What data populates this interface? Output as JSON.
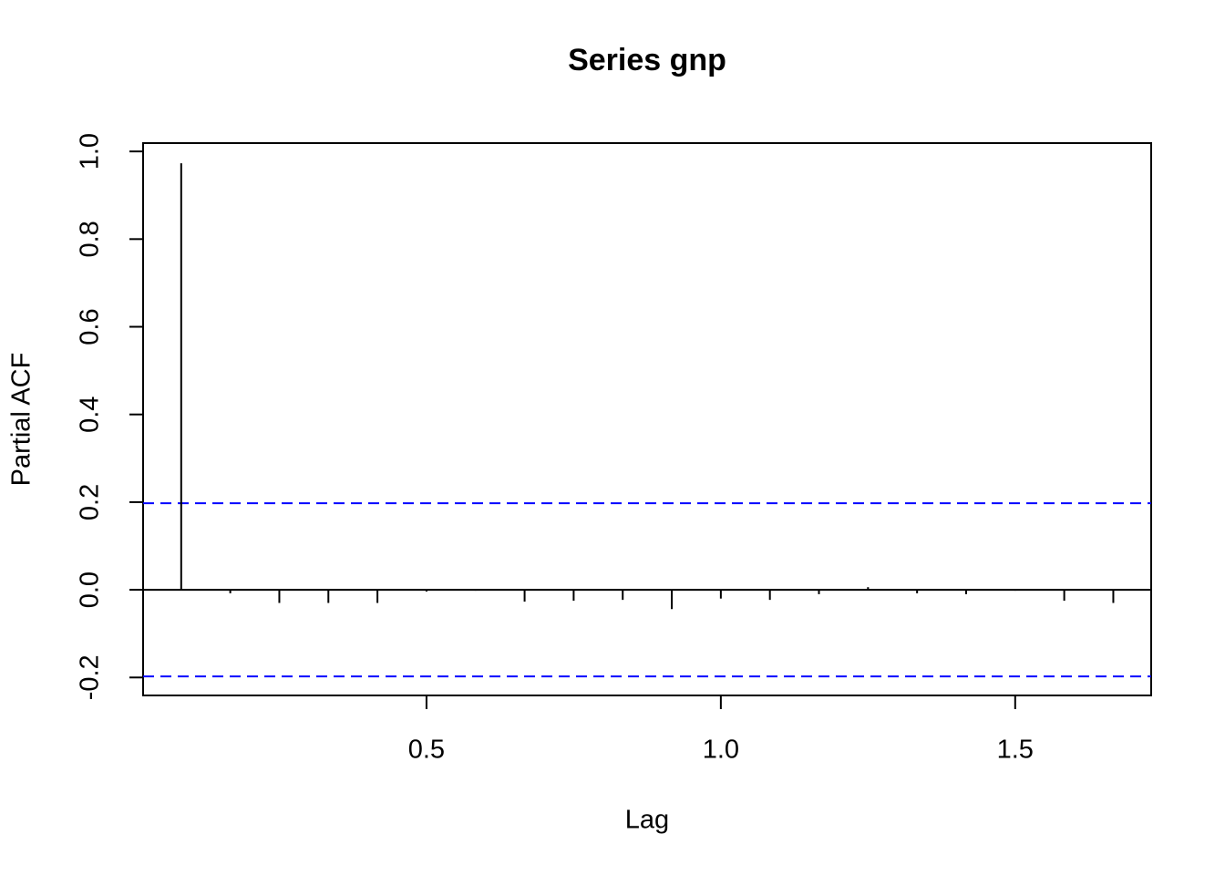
{
  "chart_data": {
    "type": "spike",
    "title": "Series  gnp",
    "x_label": "Lag",
    "y_label": "Partial ACF",
    "x": [
      0.08333,
      0.16667,
      0.25,
      0.33333,
      0.41667,
      0.5,
      0.58333,
      0.66667,
      0.75,
      0.83333,
      0.91667,
      1.0,
      1.08333,
      1.16667,
      1.25,
      1.33333,
      1.41667,
      1.5,
      1.58333,
      1.66667
    ],
    "values": [
      0.973,
      -0.008,
      -0.03,
      -0.03,
      -0.03,
      -0.004,
      -0.002,
      -0.027,
      -0.025,
      -0.023,
      -0.044,
      -0.02,
      -0.023,
      -0.01,
      0.006,
      -0.008,
      -0.01,
      -0.002,
      -0.025,
      -0.03
    ],
    "color": "#000000",
    "ci_lines": [
      0.1975,
      -0.1975
    ],
    "ci_color": "#0000ff",
    "xlim": [
      0.0186,
      1.731
    ],
    "ylim": [
      -0.241,
      1.019
    ],
    "xticks": [
      0.5,
      {
        "value": 1,
        "label": "1.0"
      },
      1.5
    ],
    "yticks": [
      -0.2,
      {
        "value": 0,
        "label": "0.0"
      },
      0.2,
      0.4,
      0.6,
      0.8,
      {
        "value": 1,
        "label": "1.0"
      }
    ]
  }
}
